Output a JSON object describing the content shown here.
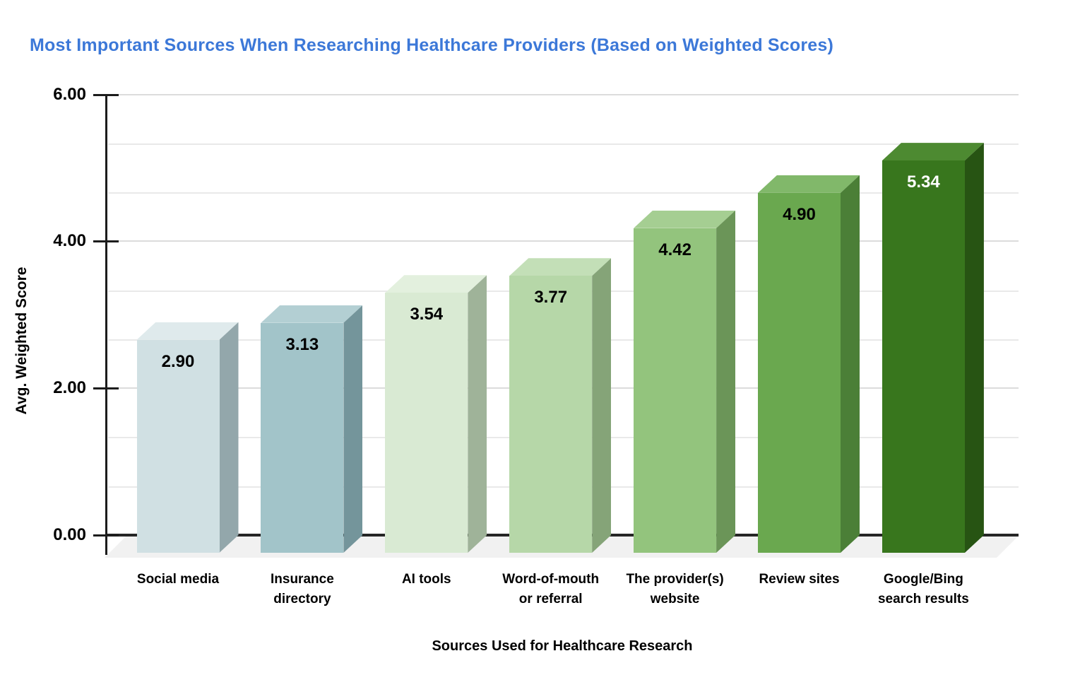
{
  "chart_data": {
    "type": "bar",
    "variant": "3d-column",
    "title": "Most Important Sources When Researching Healthcare Providers (Based on Weighted Scores)",
    "xlabel": "Sources Used for Healthcare Research",
    "ylabel": "Avg. Weighted Score",
    "categories": [
      "Social media",
      "Insurance directory",
      "AI tools",
      "Word-of-mouth or referral",
      "The provider(s) website",
      "Review sites",
      "Google/Bing search results"
    ],
    "category_label_lines": [
      [
        "Social media"
      ],
      [
        "Insurance",
        "directory"
      ],
      [
        "AI tools"
      ],
      [
        "Word-of-mouth",
        "or referral"
      ],
      [
        "The provider(s)",
        "website"
      ],
      [
        "Review sites"
      ],
      [
        "Google/Bing",
        "search results"
      ]
    ],
    "values": [
      2.9,
      3.13,
      3.54,
      3.77,
      4.42,
      4.9,
      5.34
    ],
    "value_labels": [
      "2.90",
      "3.13",
      "3.54",
      "3.77",
      "4.42",
      "4.90",
      "5.34"
    ],
    "value_label_colors": [
      "#000000",
      "#000000",
      "#000000",
      "#000000",
      "#000000",
      "#000000",
      "#ffffff"
    ],
    "ylim": [
      0,
      6
    ],
    "ytick_values": [
      0,
      2,
      4,
      6
    ],
    "ytick_labels": [
      "0.00",
      "2.00",
      "4.00",
      "6.00"
    ],
    "minor_divisions_per_major": 3,
    "grid": true,
    "legend": false,
    "bar_face_colors": [
      {
        "front": "#d0e0e3",
        "top": "#dfeaec",
        "side": "#93a7ab"
      },
      {
        "front": "#a2c4c9",
        "top": "#b3cfd3",
        "side": "#74959b"
      },
      {
        "front": "#d9ead3",
        "top": "#e3f0de",
        "side": "#9fb399"
      },
      {
        "front": "#b6d7a8",
        "top": "#c3dfb7",
        "side": "#85a478"
      },
      {
        "front": "#93c47d",
        "top": "#a5ce92",
        "side": "#6b9558"
      },
      {
        "front": "#6aa84f",
        "top": "#81b86a",
        "side": "#4b7f37"
      },
      {
        "front": "#38761d",
        "top": "#4d8a31",
        "side": "#275413"
      }
    ],
    "title_color": "#3c78d8",
    "text_color": "#000000",
    "axis_color": "#1c1c1c",
    "baseline_color": "#262626",
    "minor_gridline_color": "#e9e9e9",
    "major_gridline_color": "#dcdcdc",
    "floor_color": "#f1f1f1",
    "background_color": "#ffffff"
  }
}
